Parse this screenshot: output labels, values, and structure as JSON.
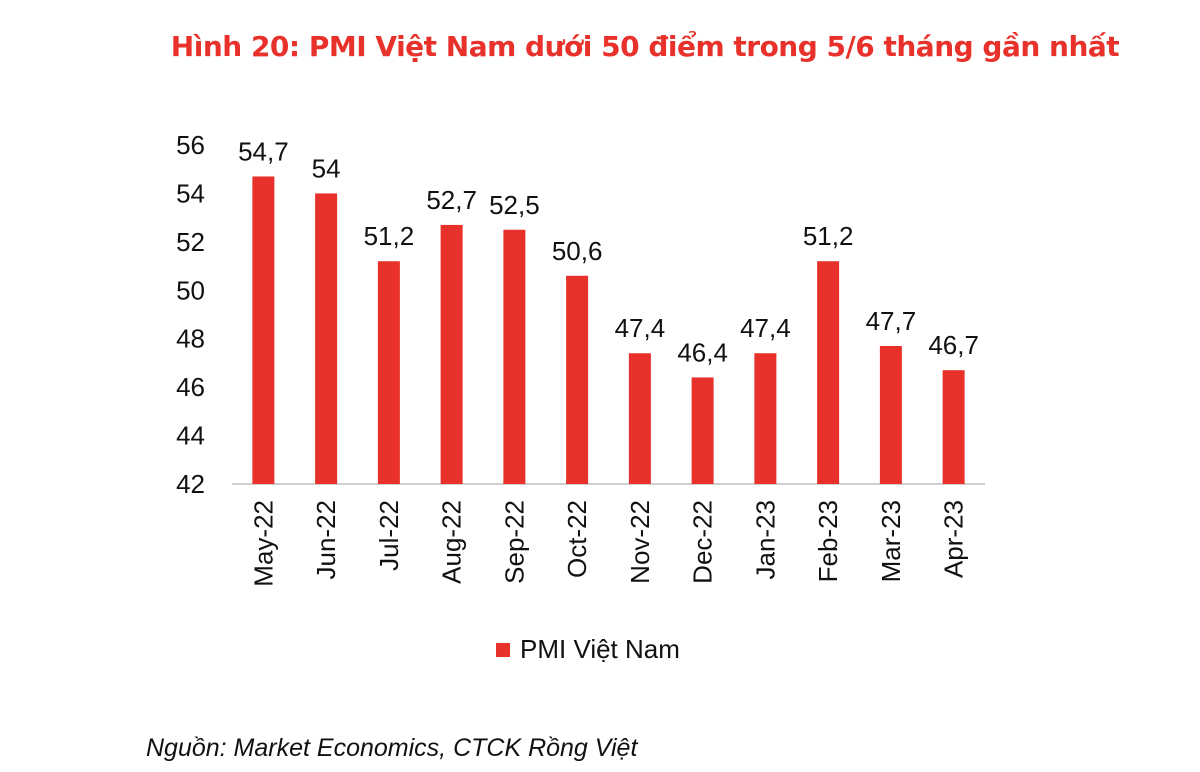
{
  "title": "Hình 20: PMI Việt Nam dưới 50 điểm trong 5/6 tháng gần nhất",
  "source": "Nguồn:  Market Economics, CTCK Rồng Việt",
  "colors": {
    "bar": "#e8312a",
    "title": "#e8312a",
    "axis": "#bfbfbf",
    "text": "#111111"
  },
  "chart_data": {
    "type": "bar",
    "categories": [
      "May-22",
      "Jun-22",
      "Jul-22",
      "Aug-22",
      "Sep-22",
      "Oct-22",
      "Nov-22",
      "Dec-22",
      "Jan-23",
      "Feb-23",
      "Mar-23",
      "Apr-23"
    ],
    "series": [
      {
        "name": "PMI Việt Nam",
        "values": [
          54.7,
          54,
          51.2,
          52.7,
          52.5,
          50.6,
          47.4,
          46.4,
          47.4,
          51.2,
          47.7,
          46.7
        ],
        "labels": [
          "54,7",
          "54",
          "51,2",
          "52,7",
          "52,5",
          "50,6",
          "47,4",
          "46,4",
          "47,4",
          "51,2",
          "47,7",
          "46,7"
        ]
      }
    ],
    "yticks": [
      42,
      44,
      46,
      48,
      50,
      52,
      54,
      56
    ],
    "ylim": [
      42,
      56
    ],
    "xlabel": "",
    "ylabel": "",
    "grid": false,
    "legend_position": "bottom"
  }
}
